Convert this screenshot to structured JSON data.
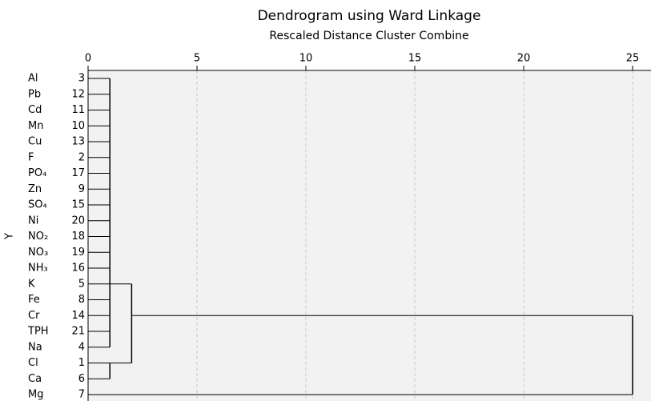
{
  "chart_data": {
    "type": "dendrogram",
    "title": "Dendrogram using Ward Linkage",
    "subtitle": "Rescaled Distance Cluster Combine",
    "y_label": "Y",
    "leaves": [
      {
        "name": "Al",
        "number": 3
      },
      {
        "name": "Pb",
        "number": 12
      },
      {
        "name": "Cd",
        "number": 11
      },
      {
        "name": "Mn",
        "number": 10
      },
      {
        "name": "Cu",
        "number": 13
      },
      {
        "name": "F",
        "number": 2
      },
      {
        "name": "PO₄",
        "number": 17
      },
      {
        "name": "Zn",
        "number": 9
      },
      {
        "name": "SO₄",
        "number": 15
      },
      {
        "name": "Ni",
        "number": 20
      },
      {
        "name": "NO₂",
        "number": 18
      },
      {
        "name": "NO₃",
        "number": 19
      },
      {
        "name": "NH₃",
        "number": 16
      },
      {
        "name": "K",
        "number": 5
      },
      {
        "name": "Fe",
        "number": 8
      },
      {
        "name": "Cr",
        "number": 14
      },
      {
        "name": "TPH",
        "number": 21
      },
      {
        "name": "Na",
        "number": 4
      },
      {
        "name": "Cl",
        "number": 1
      },
      {
        "name": "Ca",
        "number": 6
      },
      {
        "name": "Mg",
        "number": 7
      }
    ],
    "merges": [
      {
        "distance": 1,
        "leaves": [
          0,
          1,
          2,
          3,
          4,
          5,
          6,
          7,
          8,
          9,
          10,
          11,
          12,
          13,
          14,
          15,
          16,
          17
        ]
      },
      {
        "distance": 1,
        "leaves": [
          18,
          19
        ]
      },
      {
        "distance": 2,
        "clusters": [
          0,
          1
        ]
      },
      {
        "distance": 25,
        "clusters": [
          2
        ],
        "leaves": [
          20
        ]
      }
    ],
    "xlim": [
      0,
      25
    ],
    "xticks": [
      0,
      5,
      10,
      15,
      20,
      25
    ],
    "grid": true
  }
}
